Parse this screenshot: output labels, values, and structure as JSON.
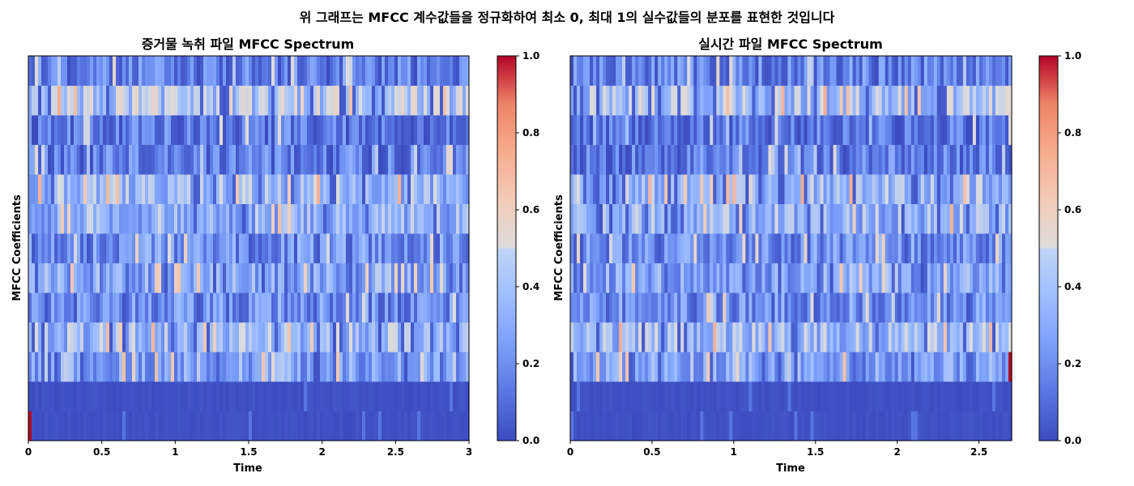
{
  "suptitle": "위 그래프는 MFCC 계수값들을 정규화하여 최소 0, 최대 1의 실수값들의 분포를 표현한 것입니다",
  "chart_data": [
    {
      "type": "heatmap",
      "title": "증거물 녹취 파일 MFCC Spectrum",
      "xlabel": "Time",
      "ylabel": "MFCC Coefficients",
      "xlim": [
        0,
        3.0
      ],
      "xticks": [
        "0",
        "0.5",
        "1",
        "1.5",
        "2",
        "2.5",
        "3"
      ],
      "rows": 13,
      "frames": 136,
      "colormap": "coolwarm",
      "colorbar": {
        "ticks": [
          "0.0",
          "0.2",
          "0.4",
          "0.6",
          "0.8",
          "1.0"
        ],
        "range": [
          0,
          1
        ]
      },
      "row_profile": [
        0.05,
        0.05,
        0.28,
        0.35,
        0.22,
        0.27,
        0.22,
        0.31,
        0.35,
        0.15,
        0.13,
        0.4,
        0.16
      ],
      "first_frame_bottom_row_value": 1.0,
      "seed": 7
    },
    {
      "type": "heatmap",
      "title": "실시간 파일 MFCC Spectrum",
      "xlabel": "Time",
      "ylabel": "MFCC Coefficients",
      "xlim": [
        0,
        2.7
      ],
      "xticks": [
        "0",
        "0.5",
        "1",
        "1.5",
        "2",
        "2.5"
      ],
      "rows": 13,
      "frames": 136,
      "colormap": "coolwarm",
      "colorbar": {
        "ticks": [
          "0.0",
          "0.2",
          "0.4",
          "0.6",
          "0.8",
          "1.0"
        ],
        "range": [
          0,
          1
        ]
      },
      "row_profile": [
        0.05,
        0.05,
        0.28,
        0.35,
        0.22,
        0.27,
        0.22,
        0.33,
        0.35,
        0.15,
        0.13,
        0.38,
        0.17
      ],
      "last_frame_row2_value": 1.0,
      "seed": 19
    }
  ]
}
